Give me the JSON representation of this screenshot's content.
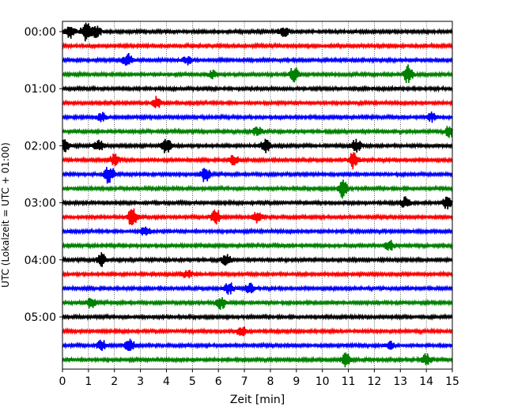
{
  "chart_data": {
    "type": "line",
    "xlabel": "Zeit  [min]",
    "ylabel": "UTC (Lokalzeit = UTC + 01:00)",
    "xlim": [
      0,
      15
    ],
    "x_ticks": [
      "0",
      "1",
      "2",
      "3",
      "4",
      "5",
      "6",
      "7",
      "8",
      "9",
      "10",
      "11",
      "12",
      "13",
      "14",
      "15"
    ],
    "y_ticks": [
      "00:00",
      "01:00",
      "02:00",
      "03:00",
      "04:00",
      "05:00"
    ],
    "grid": "vertical-dotted",
    "trace_count": 24,
    "trace_interval_min": 15,
    "trace_colors": [
      "#000000",
      "#ff0000",
      "#0000ff",
      "#008000"
    ],
    "events": [
      {
        "trace": 0,
        "x": 0.3,
        "amp": 0.55
      },
      {
        "trace": 0,
        "x": 0.9,
        "amp": 0.85
      },
      {
        "trace": 0,
        "x": 1.3,
        "amp": 0.5
      },
      {
        "trace": 0,
        "x": 8.5,
        "amp": 0.5
      },
      {
        "trace": 2,
        "x": 2.5,
        "amp": 0.55
      },
      {
        "trace": 2,
        "x": 4.8,
        "amp": 0.35
      },
      {
        "trace": 3,
        "x": 5.8,
        "amp": 0.35
      },
      {
        "trace": 3,
        "x": 8.9,
        "amp": 0.7
      },
      {
        "trace": 3,
        "x": 13.3,
        "amp": 0.8
      },
      {
        "trace": 5,
        "x": 3.6,
        "amp": 0.55
      },
      {
        "trace": 6,
        "x": 1.5,
        "amp": 0.4
      },
      {
        "trace": 6,
        "x": 14.2,
        "amp": 0.4
      },
      {
        "trace": 7,
        "x": 7.5,
        "amp": 0.45
      },
      {
        "trace": 7,
        "x": 14.9,
        "amp": 0.55
      },
      {
        "trace": 8,
        "x": 0.1,
        "amp": 0.55
      },
      {
        "trace": 8,
        "x": 1.4,
        "amp": 0.55
      },
      {
        "trace": 8,
        "x": 4.0,
        "amp": 0.7
      },
      {
        "trace": 8,
        "x": 7.8,
        "amp": 0.6
      },
      {
        "trace": 8,
        "x": 11.3,
        "amp": 0.6
      },
      {
        "trace": 9,
        "x": 2.0,
        "amp": 0.55
      },
      {
        "trace": 9,
        "x": 6.6,
        "amp": 0.45
      },
      {
        "trace": 9,
        "x": 11.2,
        "amp": 0.75
      },
      {
        "trace": 10,
        "x": 1.8,
        "amp": 0.85
      },
      {
        "trace": 10,
        "x": 5.5,
        "amp": 0.7
      },
      {
        "trace": 11,
        "x": 10.8,
        "amp": 0.8
      },
      {
        "trace": 12,
        "x": 13.2,
        "amp": 0.45
      },
      {
        "trace": 12,
        "x": 14.8,
        "amp": 0.5
      },
      {
        "trace": 13,
        "x": 2.7,
        "amp": 0.9
      },
      {
        "trace": 13,
        "x": 5.9,
        "amp": 0.7
      },
      {
        "trace": 13,
        "x": 7.5,
        "amp": 0.5
      },
      {
        "trace": 14,
        "x": 3.2,
        "amp": 0.45
      },
      {
        "trace": 15,
        "x": 12.6,
        "amp": 0.45
      },
      {
        "trace": 16,
        "x": 1.5,
        "amp": 0.6
      },
      {
        "trace": 16,
        "x": 6.3,
        "amp": 0.5
      },
      {
        "trace": 17,
        "x": 4.8,
        "amp": 0.35
      },
      {
        "trace": 18,
        "x": 6.4,
        "amp": 0.55
      },
      {
        "trace": 18,
        "x": 7.2,
        "amp": 0.4
      },
      {
        "trace": 19,
        "x": 1.1,
        "amp": 0.5
      },
      {
        "trace": 19,
        "x": 6.1,
        "amp": 0.6
      },
      {
        "trace": 21,
        "x": 6.9,
        "amp": 0.45
      },
      {
        "trace": 22,
        "x": 1.5,
        "amp": 0.5
      },
      {
        "trace": 22,
        "x": 2.6,
        "amp": 0.6
      },
      {
        "trace": 22,
        "x": 12.6,
        "amp": 0.35
      },
      {
        "trace": 23,
        "x": 10.9,
        "amp": 0.55
      },
      {
        "trace": 23,
        "x": 14.0,
        "amp": 0.6
      }
    ]
  }
}
